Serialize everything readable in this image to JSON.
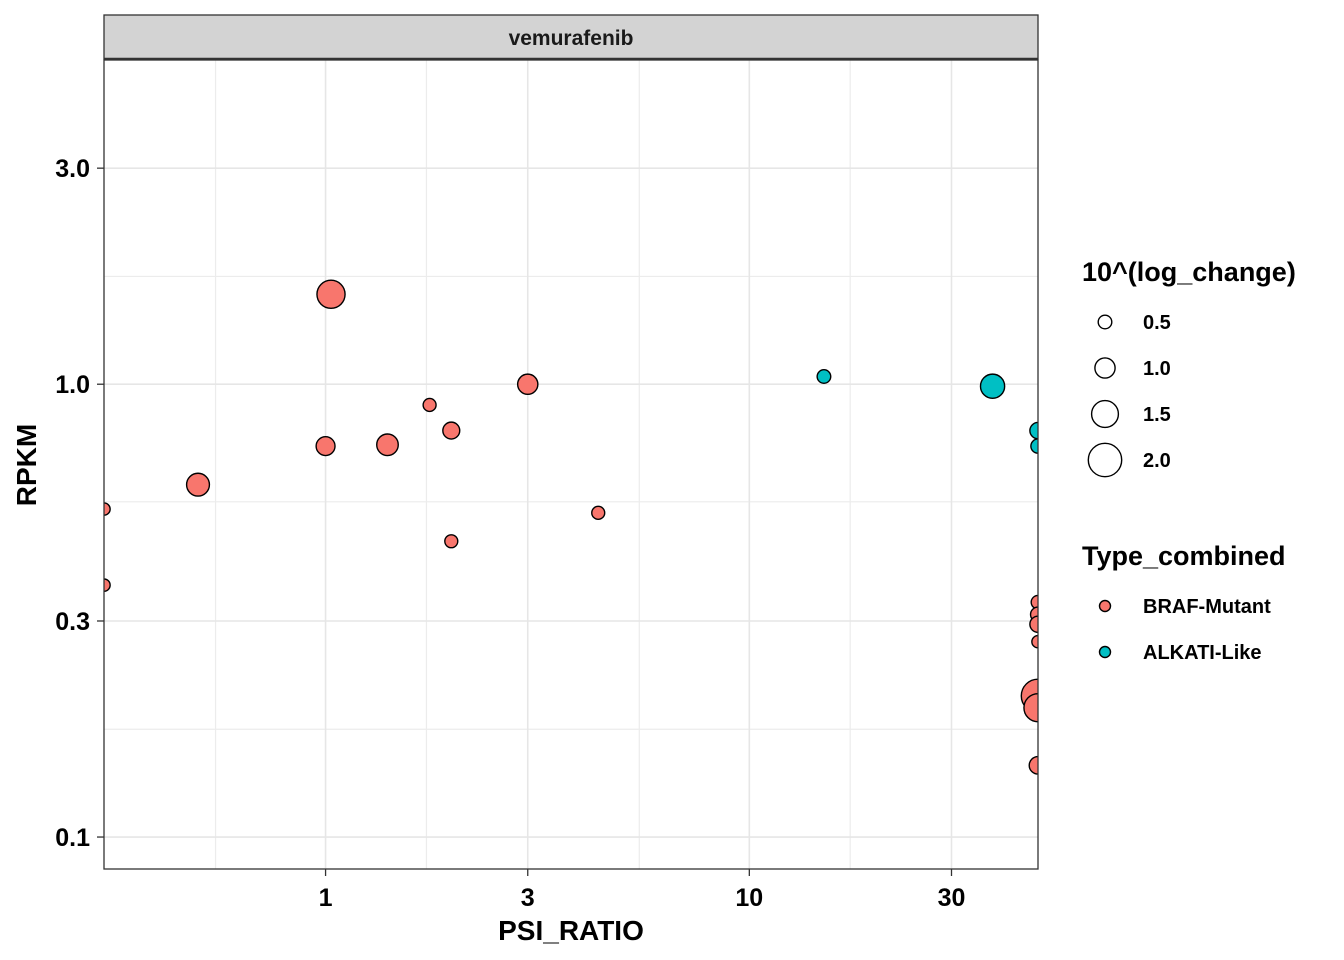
{
  "chart_data": {
    "type": "scatter",
    "panel_title": "vemurafenib",
    "xlabel": "PSI_RATIO",
    "ylabel": "RPKM",
    "x_scale": "log10",
    "y_scale": "log10",
    "xlim": [
      0.3,
      48
    ],
    "ylim": [
      0.085,
      5.2
    ],
    "x_ticks": [
      1,
      3,
      10,
      30
    ],
    "x_tick_labels": [
      "1",
      "3",
      "10",
      "30"
    ],
    "y_ticks": [
      0.1,
      0.3,
      1.0,
      3.0
    ],
    "y_tick_labels": [
      "0.1",
      "0.3",
      "1.0",
      "3.0"
    ],
    "x_minor_gridlines": [
      0.55,
      1.73,
      5.5,
      17.3
    ],
    "y_minor_gridlines": [
      0.173,
      0.55,
      1.73,
      5.5
    ],
    "grid": true,
    "legend_position": "right",
    "size_legend": {
      "title": "10^(log_change)",
      "entries": [
        {
          "label": "0.5",
          "value": 0.5
        },
        {
          "label": "1.0",
          "value": 1.0
        },
        {
          "label": "1.5",
          "value": 1.5
        },
        {
          "label": "2.0",
          "value": 2.0
        }
      ]
    },
    "color_legend": {
      "title": "Type_combined",
      "entries": [
        {
          "label": "BRAF-Mutant",
          "color": "#f8766d"
        },
        {
          "label": "ALKATI-Like",
          "color": "#00bfc4"
        }
      ]
    },
    "series": [
      {
        "name": "BRAF-Mutant",
        "color": "#f8766d",
        "points": [
          {
            "x": 0.3,
            "y": 0.53,
            "size": 0.4
          },
          {
            "x": 0.3,
            "y": 0.36,
            "size": 0.4
          },
          {
            "x": 0.5,
            "y": 0.6,
            "size": 1.2
          },
          {
            "x": 1.0,
            "y": 0.73,
            "size": 0.9
          },
          {
            "x": 1.03,
            "y": 1.58,
            "size": 1.6
          },
          {
            "x": 1.4,
            "y": 0.735,
            "size": 1.1
          },
          {
            "x": 1.76,
            "y": 0.9,
            "size": 0.45
          },
          {
            "x": 1.98,
            "y": 0.79,
            "size": 0.75
          },
          {
            "x": 1.98,
            "y": 0.45,
            "size": 0.45
          },
          {
            "x": 3.0,
            "y": 1.0,
            "size": 1.0
          },
          {
            "x": 4.4,
            "y": 0.52,
            "size": 0.45
          },
          {
            "x": 48,
            "y": 0.33,
            "size": 0.5
          },
          {
            "x": 48,
            "y": 0.31,
            "size": 0.6
          },
          {
            "x": 48,
            "y": 0.295,
            "size": 0.7
          },
          {
            "x": 48,
            "y": 0.27,
            "size": 0.4
          },
          {
            "x": 48,
            "y": 0.205,
            "size": 2.0
          },
          {
            "x": 48,
            "y": 0.193,
            "size": 1.6
          },
          {
            "x": 48,
            "y": 0.144,
            "size": 0.8
          }
        ]
      },
      {
        "name": "ALKATI-Like",
        "color": "#00bfc4",
        "points": [
          {
            "x": 15.0,
            "y": 1.04,
            "size": 0.5
          },
          {
            "x": 37.5,
            "y": 0.99,
            "size": 1.3
          },
          {
            "x": 48,
            "y": 0.79,
            "size": 0.7
          },
          {
            "x": 48,
            "y": 0.73,
            "size": 0.55
          }
        ]
      }
    ]
  }
}
